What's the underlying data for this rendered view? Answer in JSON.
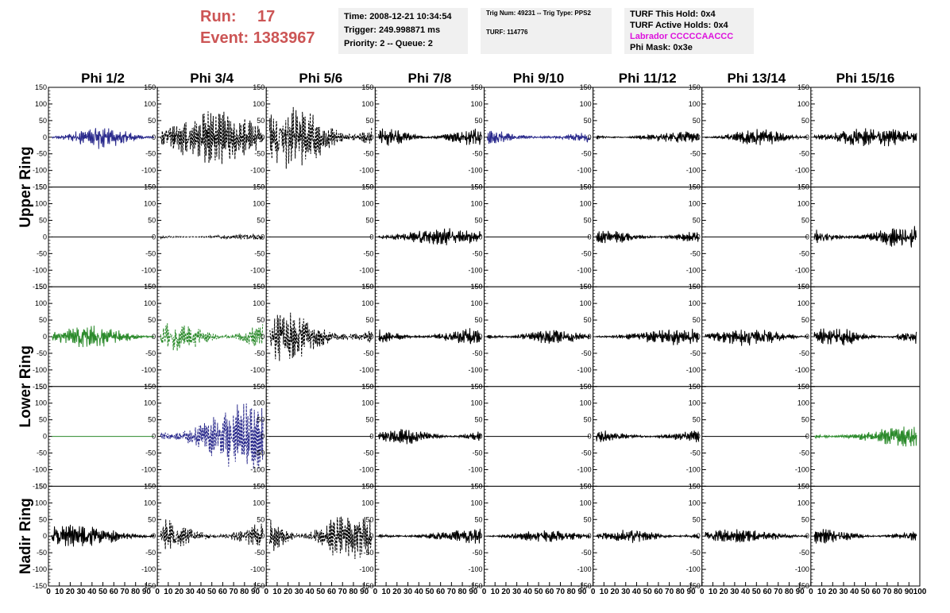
{
  "header": {
    "run_label": "Run:",
    "run_value": "17",
    "event_label": "Event:",
    "event_value": "1383967"
  },
  "time_box": {
    "line1": "Time: 2008-12-21 10:34:54",
    "line2": "Trigger: 249.998871 ms",
    "line3": "Priority: 2 -- Queue: 2"
  },
  "trig_box": {
    "line1": "Trig Num: 49231 -- Trig Type: PPS2",
    "line2": "TURF: 114776"
  },
  "turf_box": {
    "line1": "TURF This Hold: 0x4",
    "line2": "TURF Active Holds: 0x4",
    "line3": "Labrador CCCCCAACCC",
    "line4": "Phi Mask: 0x3e"
  },
  "colors": {
    "black": "#000000",
    "blue": "#2a2a8c",
    "green": "#2b8a2b",
    "header_red": "#cc5555",
    "magenta": "#dd11dd"
  },
  "chart_data": {
    "type": "line",
    "columns": [
      "Phi 1/2",
      "Phi 3/4",
      "Phi 5/6",
      "Phi 7/8",
      "Phi 9/10",
      "Phi 11/12",
      "Phi 13/14",
      "Phi 15/16"
    ],
    "row_groups": [
      {
        "label": "Upper Ring",
        "rows": [
          0,
          1
        ]
      },
      {
        "label": "Lower Ring",
        "rows": [
          2,
          3
        ]
      },
      {
        "label": "Nadir Ring",
        "rows": [
          4
        ]
      }
    ],
    "ylim": [
      -150,
      150
    ],
    "yticks": [
      "150",
      "100",
      "50",
      "0",
      "-50",
      "-100",
      "-150"
    ],
    "xlim": [
      0,
      100
    ],
    "xticks": [
      "0",
      "10",
      "20",
      "30",
      "40",
      "50",
      "60",
      "70",
      "80",
      "90",
      "100"
    ],
    "panels": [
      [
        {
          "color": "blue",
          "dash": false,
          "amp": 30,
          "seed": 11
        },
        {
          "color": "black",
          "dash": true,
          "amp": 70,
          "seed": 12
        },
        {
          "color": "black",
          "dash": true,
          "amp": 85,
          "seed": 13
        },
        {
          "color": "black",
          "dash": false,
          "amp": 25,
          "seed": 14
        },
        {
          "color": "blue",
          "dash": false,
          "amp": 25,
          "seed": 15
        },
        {
          "color": "black",
          "dash": false,
          "amp": 15,
          "seed": 16
        },
        {
          "color": "black",
          "dash": false,
          "amp": 22,
          "seed": 17
        },
        {
          "color": "black",
          "dash": false,
          "amp": 25,
          "seed": 18
        }
      ],
      [
        {
          "color": "black",
          "dash": false,
          "amp": 0,
          "seed": 21
        },
        {
          "color": "black",
          "dash": true,
          "amp": 8,
          "seed": 22
        },
        {
          "color": "black",
          "dash": false,
          "amp": 0,
          "seed": 23
        },
        {
          "color": "black",
          "dash": false,
          "amp": 22,
          "seed": 24
        },
        {
          "color": "black",
          "dash": false,
          "amp": 0,
          "seed": 25
        },
        {
          "color": "black",
          "dash": false,
          "amp": 18,
          "seed": 26
        },
        {
          "color": "black",
          "dash": false,
          "amp": 0,
          "seed": 27
        },
        {
          "color": "black",
          "dash": false,
          "amp": 30,
          "seed": 28
        }
      ],
      [
        {
          "color": "green",
          "dash": false,
          "amp": 30,
          "seed": 31
        },
        {
          "color": "green",
          "dash": true,
          "amp": 40,
          "seed": 32
        },
        {
          "color": "black",
          "dash": true,
          "amp": 75,
          "seed": 33
        },
        {
          "color": "black",
          "dash": false,
          "amp": 25,
          "seed": 34
        },
        {
          "color": "black",
          "dash": false,
          "amp": 20,
          "seed": 35
        },
        {
          "color": "black",
          "dash": false,
          "amp": 22,
          "seed": 36
        },
        {
          "color": "black",
          "dash": false,
          "amp": 25,
          "seed": 37
        },
        {
          "color": "black",
          "dash": false,
          "amp": 25,
          "seed": 38
        }
      ],
      [
        {
          "color": "green",
          "dash": false,
          "amp": 0,
          "seed": 41
        },
        {
          "color": "blue",
          "dash": true,
          "amp": 95,
          "seed": 42
        },
        {
          "color": "black",
          "dash": false,
          "amp": 0,
          "seed": 43
        },
        {
          "color": "black",
          "dash": false,
          "amp": 20,
          "seed": 44
        },
        {
          "color": "black",
          "dash": false,
          "amp": 0,
          "seed": 45
        },
        {
          "color": "black",
          "dash": false,
          "amp": 18,
          "seed": 46
        },
        {
          "color": "black",
          "dash": false,
          "amp": 0,
          "seed": 47
        },
        {
          "color": "green",
          "dash": false,
          "amp": 28,
          "seed": 48
        }
      ],
      [
        {
          "color": "black",
          "dash": false,
          "amp": 30,
          "seed": 51
        },
        {
          "color": "black",
          "dash": true,
          "amp": 45,
          "seed": 52
        },
        {
          "color": "black",
          "dash": true,
          "amp": 65,
          "seed": 53
        },
        {
          "color": "black",
          "dash": false,
          "amp": 20,
          "seed": 54
        },
        {
          "color": "black",
          "dash": false,
          "amp": 15,
          "seed": 55
        },
        {
          "color": "black",
          "dash": false,
          "amp": 18,
          "seed": 56
        },
        {
          "color": "black",
          "dash": false,
          "amp": 18,
          "seed": 57
        },
        {
          "color": "black",
          "dash": false,
          "amp": 20,
          "seed": 58
        }
      ]
    ]
  }
}
